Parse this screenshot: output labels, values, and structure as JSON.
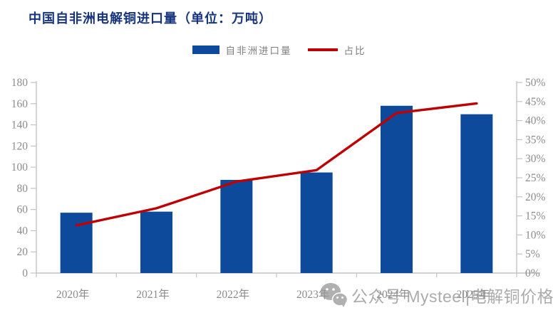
{
  "title": "中国自非洲电解铜进口量（单位：万吨）",
  "legend": {
    "bar_label": "自非洲进口量",
    "line_label": "占比"
  },
  "watermark": {
    "icon": "wechat-icon",
    "text": "公众号  Mysteel|电解铜价格"
  },
  "colors": {
    "title": "#17357c",
    "bar": "#0d4a9c",
    "line": "#c00000",
    "axis": "#c3c3c3",
    "tick_text": "#8c8c8c"
  },
  "chart_data": {
    "type": "bar",
    "subtype": "bar-and-line-combo",
    "title": "中国自非洲电解铜进口量（单位：万吨）",
    "categories": [
      "2020年",
      "2021年",
      "2022年",
      "2023年",
      "2024年",
      "2025年"
    ],
    "series": [
      {
        "name": "自非洲进口量",
        "type": "bar",
        "axis": "left",
        "color": "#0d4a9c",
        "values": [
          57,
          58,
          88,
          95,
          158,
          150
        ]
      },
      {
        "name": "占比",
        "type": "line",
        "axis": "right",
        "color": "#c00000",
        "values": [
          12.5,
          17,
          24,
          27,
          42,
          44.5
        ]
      }
    ],
    "left_axis": {
      "min": 0,
      "max": 180,
      "step": 20,
      "ticks": [
        "0",
        "20",
        "40",
        "60",
        "80",
        "100",
        "120",
        "140",
        "160",
        "180"
      ]
    },
    "right_axis": {
      "min": 0,
      "max": 50,
      "step": 5,
      "ticks": [
        "0%",
        "5%",
        "10%",
        "15%",
        "20%",
        "25%",
        "30%",
        "35%",
        "40%",
        "45%",
        "50%"
      ]
    },
    "grid": "off",
    "legend_position": "top-center"
  }
}
